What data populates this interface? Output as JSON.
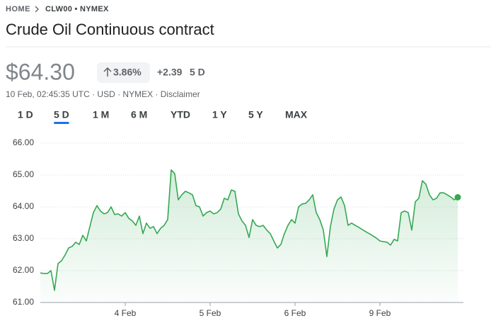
{
  "header": {
    "breadcrumb_home": "HOME",
    "breadcrumb_symbol": "CLW00 • NYMEX",
    "title": "Crude Oil Continuous contract",
    "price": "$64.30",
    "change_percent": "3.86%",
    "change_value": "+2.39",
    "change_period": "5 D",
    "meta": "10 Feb, 02:45:35 UTC · USD · NYMEX · Disclaimer",
    "tabs": [
      "1 D",
      "5 D",
      "1 M",
      "6 M",
      "YTD",
      "1 Y",
      "5 Y",
      "MAX"
    ],
    "active_tab": 1
  },
  "chart_data": {
    "type": "line",
    "categories": [
      null,
      null,
      null,
      null,
      null,
      null,
      null,
      null,
      null,
      null,
      null,
      null,
      null,
      null,
      null,
      null,
      null,
      null,
      null,
      null,
      null,
      null,
      null,
      null,
      "4 Feb",
      null,
      null,
      null,
      null,
      null,
      null,
      null,
      null,
      null,
      null,
      null,
      null,
      null,
      null,
      null,
      null,
      null,
      null,
      null,
      null,
      null,
      null,
      null,
      "5 Feb",
      null,
      null,
      null,
      null,
      null,
      null,
      null,
      null,
      null,
      null,
      null,
      null,
      null,
      null,
      null,
      null,
      null,
      null,
      null,
      null,
      null,
      null,
      null,
      "6 Feb",
      null,
      null,
      null,
      null,
      null,
      null,
      null,
      null,
      null,
      null,
      null,
      null,
      null,
      null,
      null,
      null,
      null,
      null,
      null,
      null,
      null,
      null,
      null,
      "9 Feb",
      null,
      null,
      null,
      null,
      null,
      null,
      null,
      null,
      null,
      null,
      null,
      null,
      null,
      null,
      null,
      null,
      null,
      null,
      null,
      null,
      null,
      null
    ],
    "series": [
      {
        "color": "#34a853",
        "values": [
          61.93,
          61.91,
          61.91,
          62.0,
          61.38,
          62.22,
          62.31,
          62.49,
          62.71,
          62.76,
          62.89,
          62.82,
          63.11,
          62.93,
          63.38,
          63.82,
          64.04,
          63.87,
          63.78,
          63.82,
          64.0,
          63.76,
          63.78,
          63.71,
          63.82,
          63.64,
          63.56,
          63.42,
          63.71,
          63.16,
          63.49,
          63.33,
          63.38,
          63.16,
          63.33,
          63.42,
          63.6,
          65.16,
          65.04,
          64.22,
          64.38,
          64.49,
          64.44,
          64.38,
          64.04,
          64.0,
          63.71,
          63.82,
          63.87,
          63.78,
          63.82,
          63.93,
          64.27,
          64.22,
          64.53,
          64.49,
          63.78,
          63.56,
          63.42,
          63.04,
          63.6,
          63.42,
          63.38,
          63.42,
          63.27,
          63.16,
          62.93,
          62.71,
          62.82,
          63.16,
          63.42,
          63.6,
          63.49,
          64.0,
          64.09,
          64.11,
          64.22,
          64.38,
          63.82,
          63.6,
          63.27,
          62.44,
          63.38,
          63.93,
          64.22,
          64.31,
          64.04,
          63.42,
          63.49,
          63.42,
          63.36,
          63.29,
          63.22,
          63.16,
          63.09,
          63.02,
          62.93,
          62.91,
          62.89,
          62.8,
          62.98,
          62.93,
          63.82,
          63.87,
          63.82,
          63.27,
          64.16,
          64.27,
          64.82,
          64.71,
          64.38,
          64.22,
          64.27,
          64.44,
          64.44,
          64.38,
          64.31,
          64.22,
          64.3
        ]
      }
    ],
    "ylim": [
      61,
      66
    ],
    "yticks": [
      {
        "value": 61,
        "label": "61.00"
      },
      {
        "value": 62,
        "label": "62.00"
      },
      {
        "value": 63,
        "label": "63.00"
      },
      {
        "value": 64,
        "label": "64.00"
      },
      {
        "value": 65,
        "label": "65.00"
      },
      {
        "value": 66,
        "label": "66.00"
      }
    ],
    "grid": true
  }
}
